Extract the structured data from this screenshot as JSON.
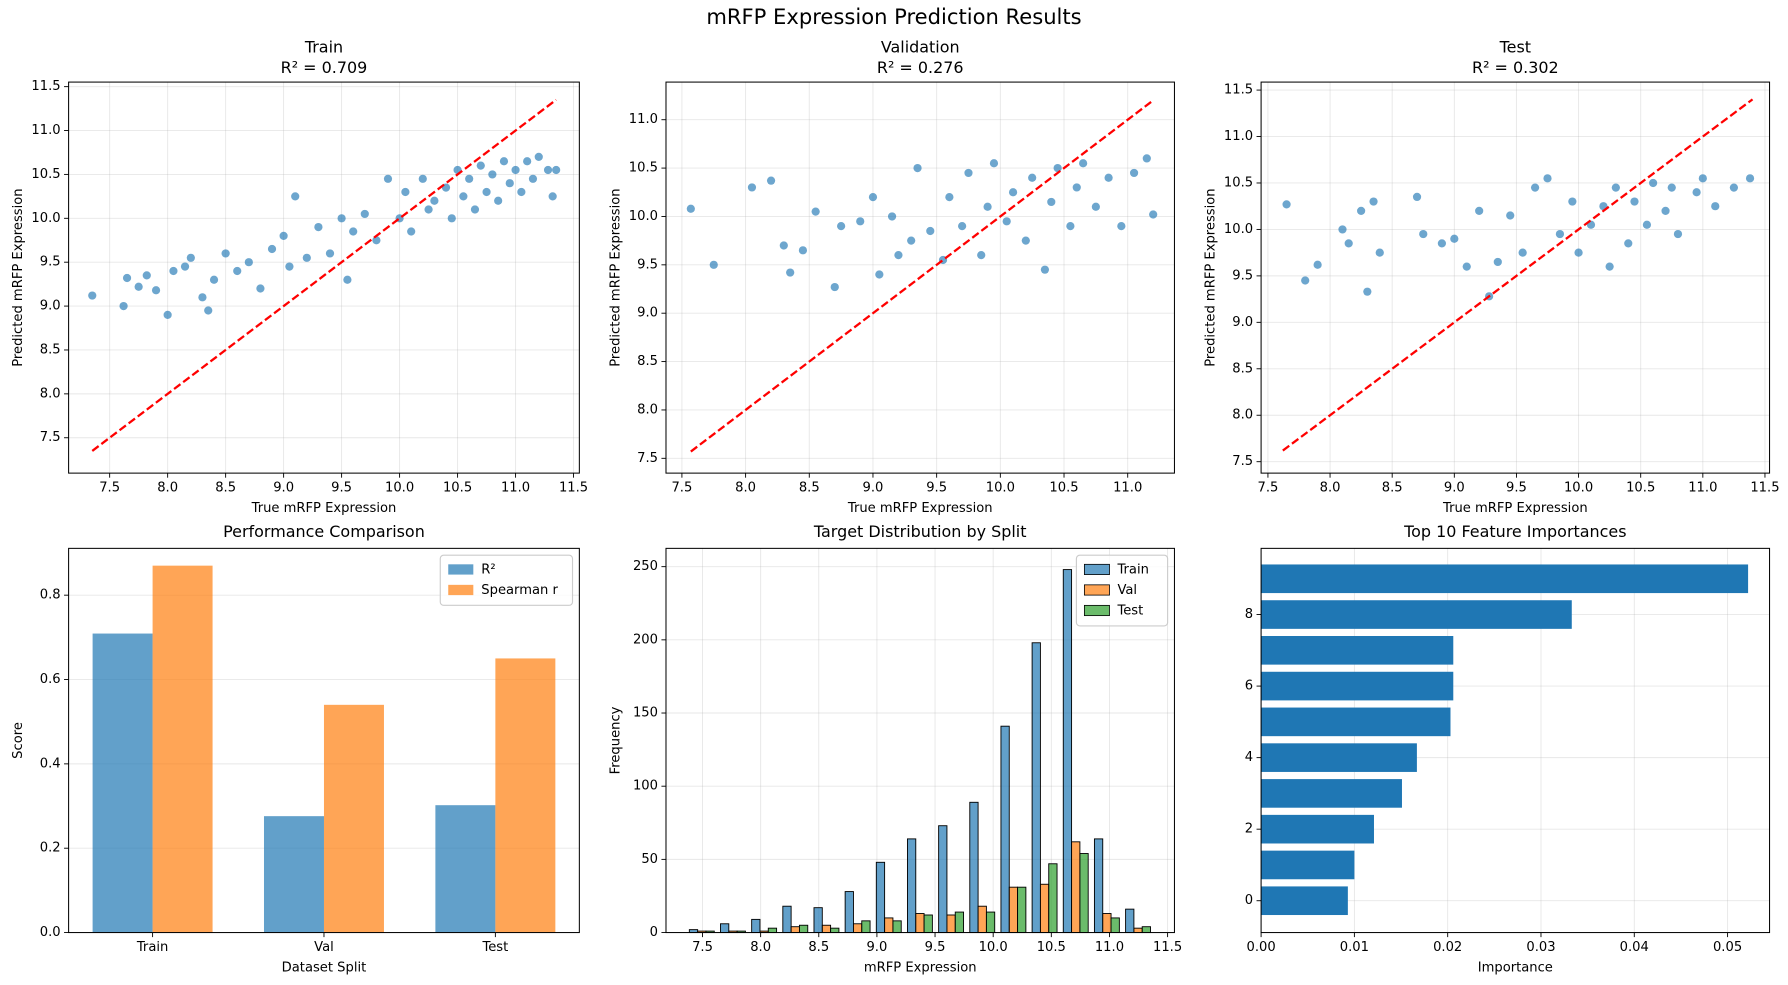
{
  "title": "mRFP Expression Prediction Results",
  "chart_data": [
    {
      "type": "scatter",
      "title": "Train",
      "subtitle": "R² = 0.709",
      "x_label": "True mRFP Expression",
      "y_label": "Predicted mRFP Expression",
      "color": "#1f77b4",
      "grid": true,
      "x": [
        7.35,
        7.62,
        7.65,
        7.75,
        7.82,
        7.9,
        8.0,
        8.05,
        8.15,
        8.2,
        8.3,
        8.35,
        8.4,
        8.5,
        8.6,
        8.7,
        8.8,
        8.9,
        9.0,
        9.05,
        9.1,
        9.2,
        9.3,
        9.4,
        9.5,
        9.55,
        9.6,
        9.7,
        9.8,
        9.9,
        10.0,
        10.05,
        10.1,
        10.2,
        10.25,
        10.3,
        10.4,
        10.45,
        10.5,
        10.55,
        10.6,
        10.65,
        10.7,
        10.75,
        10.8,
        10.85,
        10.9,
        10.95,
        11.0,
        11.05,
        11.1,
        11.15,
        11.2,
        11.28,
        11.32,
        11.35
      ],
      "values": [
        9.12,
        9.0,
        9.32,
        9.22,
        9.35,
        9.18,
        8.9,
        9.4,
        9.45,
        9.55,
        9.1,
        8.95,
        9.3,
        9.6,
        9.4,
        9.5,
        9.2,
        9.65,
        9.8,
        9.45,
        10.25,
        9.55,
        9.9,
        9.6,
        10.0,
        9.3,
        9.85,
        10.05,
        9.75,
        10.45,
        10.0,
        10.3,
        9.85,
        10.45,
        10.1,
        10.2,
        10.35,
        10.0,
        10.55,
        10.25,
        10.45,
        10.1,
        10.6,
        10.3,
        10.5,
        10.2,
        10.65,
        10.4,
        10.55,
        10.3,
        10.65,
        10.45,
        10.7,
        10.55,
        10.25,
        10.55
      ],
      "reference_line": {
        "color": "red",
        "x": [
          7.35,
          11.35
        ],
        "values": [
          7.35,
          11.35
        ]
      },
      "xlim": [
        7.146,
        11.55
      ],
      "ylim": [
        7.097,
        11.552
      ],
      "xticks": [
        {
          "value": 7.5,
          "label": "7.5"
        },
        {
          "value": 8,
          "label": "8.0"
        },
        {
          "value": 8.5,
          "label": "8.5"
        },
        {
          "value": 9,
          "label": "9.0"
        },
        {
          "value": 9.5,
          "label": "9.5"
        },
        {
          "value": 10,
          "label": "10.0"
        },
        {
          "value": 10.5,
          "label": "10.5"
        },
        {
          "value": 11,
          "label": "11.0"
        },
        {
          "value": 11.5,
          "label": "11.5"
        }
      ],
      "yticks": [
        {
          "value": 7.5,
          "label": "7.5"
        },
        {
          "value": 8,
          "label": "8.0"
        },
        {
          "value": 8.5,
          "label": "8.5"
        },
        {
          "value": 9,
          "label": "9.0"
        },
        {
          "value": 9.5,
          "label": "9.5"
        },
        {
          "value": 10,
          "label": "10.0"
        },
        {
          "value": 10.5,
          "label": "10.5"
        },
        {
          "value": 11,
          "label": "11.0"
        },
        {
          "value": 11.5,
          "label": "11.5"
        }
      ]
    },
    {
      "type": "scatter",
      "title": "Validation",
      "subtitle": "R² = 0.276",
      "x_label": "True mRFP Expression",
      "y_label": "Predicted mRFP Expression",
      "color": "#1f77b4",
      "grid": true,
      "x": [
        7.57,
        7.75,
        8.05,
        8.2,
        8.3,
        8.35,
        8.45,
        8.55,
        8.7,
        8.75,
        8.9,
        9.0,
        9.05,
        9.15,
        9.2,
        9.3,
        9.35,
        9.45,
        9.55,
        9.6,
        9.7,
        9.75,
        9.85,
        9.9,
        9.95,
        10.05,
        10.1,
        10.2,
        10.25,
        10.35,
        10.4,
        10.45,
        10.55,
        10.6,
        10.65,
        10.75,
        10.85,
        10.95,
        11.05,
        11.15,
        11.2
      ],
      "values": [
        10.08,
        9.5,
        10.3,
        10.37,
        9.7,
        9.42,
        9.65,
        10.05,
        9.27,
        9.9,
        9.95,
        10.2,
        9.4,
        10.0,
        9.6,
        9.75,
        10.5,
        9.85,
        9.55,
        10.2,
        9.9,
        10.45,
        9.6,
        10.1,
        10.55,
        9.95,
        10.25,
        9.75,
        10.4,
        9.45,
        10.15,
        10.5,
        9.9,
        10.3,
        10.55,
        10.1,
        10.4,
        9.9,
        10.45,
        10.6,
        10.02
      ],
      "reference_line": {
        "color": "red",
        "x": [
          7.57,
          11.2
        ],
        "values": [
          7.57,
          11.2
        ]
      },
      "xlim": [
        7.375,
        11.367
      ],
      "ylim": [
        7.347,
        11.389
      ],
      "xticks": [
        {
          "value": 7.5,
          "label": "7.5"
        },
        {
          "value": 8,
          "label": "8.0"
        },
        {
          "value": 8.5,
          "label": "8.5"
        },
        {
          "value": 9,
          "label": "9.0"
        },
        {
          "value": 9.5,
          "label": "9.5"
        },
        {
          "value": 10,
          "label": "10.0"
        },
        {
          "value": 10.5,
          "label": "10.5"
        },
        {
          "value": 11,
          "label": "11.0"
        }
      ],
      "yticks": [
        {
          "value": 7.5,
          "label": "7.5"
        },
        {
          "value": 8,
          "label": "8.0"
        },
        {
          "value": 8.5,
          "label": "8.5"
        },
        {
          "value": 9,
          "label": "9.0"
        },
        {
          "value": 9.5,
          "label": "9.5"
        },
        {
          "value": 10,
          "label": "10.0"
        },
        {
          "value": 10.5,
          "label": "10.5"
        },
        {
          "value": 11,
          "label": "11.0"
        }
      ]
    },
    {
      "type": "scatter",
      "title": "Test",
      "subtitle": "R² = 0.302",
      "x_label": "True mRFP Expression",
      "y_label": "Predicted mRFP Expression",
      "color": "#1f77b4",
      "grid": true,
      "x": [
        7.65,
        7.8,
        7.9,
        8.1,
        8.15,
        8.25,
        8.3,
        8.35,
        8.4,
        8.7,
        8.75,
        8.9,
        9.0,
        9.1,
        9.2,
        9.28,
        9.35,
        9.45,
        9.55,
        9.65,
        9.75,
        9.85,
        9.95,
        10.0,
        10.1,
        10.2,
        10.25,
        10.3,
        10.4,
        10.45,
        10.55,
        10.6,
        10.7,
        10.75,
        10.8,
        10.95,
        11.0,
        11.1,
        11.25,
        11.38
      ],
      "values": [
        10.27,
        9.45,
        9.62,
        10.0,
        9.85,
        10.2,
        9.33,
        10.3,
        9.75,
        10.35,
        9.95,
        9.85,
        9.9,
        9.6,
        10.2,
        9.28,
        9.65,
        10.15,
        9.75,
        10.45,
        10.55,
        9.95,
        10.3,
        9.75,
        10.05,
        10.25,
        9.6,
        10.45,
        9.85,
        10.3,
        10.05,
        10.5,
        10.2,
        10.45,
        9.95,
        10.4,
        10.55,
        10.25,
        10.45,
        10.55
      ],
      "reference_line": {
        "color": "red",
        "x": [
          7.62,
          11.4
        ],
        "values": [
          7.62,
          11.4
        ]
      },
      "xlim": [
        7.445,
        11.537
      ],
      "ylim": [
        7.377,
        11.586
      ],
      "xticks": [
        {
          "value": 7.5,
          "label": "7.5"
        },
        {
          "value": 8,
          "label": "8.0"
        },
        {
          "value": 8.5,
          "label": "8.5"
        },
        {
          "value": 9,
          "label": "9.0"
        },
        {
          "value": 9.5,
          "label": "9.5"
        },
        {
          "value": 10,
          "label": "10.0"
        },
        {
          "value": 10.5,
          "label": "10.5"
        },
        {
          "value": 11,
          "label": "11.0"
        },
        {
          "value": 11.5,
          "label": "11.5"
        }
      ],
      "yticks": [
        {
          "value": 7.5,
          "label": "7.5"
        },
        {
          "value": 8,
          "label": "8.0"
        },
        {
          "value": 8.5,
          "label": "8.5"
        },
        {
          "value": 9,
          "label": "9.0"
        },
        {
          "value": 9.5,
          "label": "9.5"
        },
        {
          "value": 10,
          "label": "10.0"
        },
        {
          "value": 10.5,
          "label": "10.5"
        },
        {
          "value": 11,
          "label": "11.0"
        },
        {
          "value": 11.5,
          "label": "11.5"
        }
      ]
    },
    {
      "type": "bar",
      "title": "Performance Comparison",
      "x_label": "Dataset Split",
      "y_label": "Score",
      "grid": true,
      "legend": "upper right",
      "categories": [
        "Train",
        "Val",
        "Test"
      ],
      "series": [
        {
          "name": "R²",
          "color": "#1f77b4",
          "values": [
            0.709,
            0.276,
            0.302
          ]
        },
        {
          "name": "Spearman r",
          "color": "#ff7f0e",
          "values": [
            0.87,
            0.54,
            0.65
          ]
        }
      ],
      "ylim": [
        0,
        0.911
      ],
      "yticks": [
        {
          "value": 0,
          "label": "0.0"
        },
        {
          "value": 0.2,
          "label": "0.2"
        },
        {
          "value": 0.4,
          "label": "0.4"
        },
        {
          "value": 0.6,
          "label": "0.6"
        },
        {
          "value": 0.8,
          "label": "0.8"
        }
      ]
    },
    {
      "type": "histogram",
      "title": "Target Distribution by Split",
      "x_label": "mRFP Expression",
      "y_label": "Frequency",
      "grid": true,
      "legend": "upper right",
      "bins": [
        7.36,
        7.628,
        7.896,
        8.164,
        8.432,
        8.7,
        8.968,
        9.236,
        9.504,
        9.772,
        10.04,
        10.308,
        10.576,
        10.844,
        11.112,
        11.38
      ],
      "series": [
        {
          "name": "Train",
          "color": "#1f77b4",
          "values": [
            2,
            6,
            9,
            18,
            17,
            28,
            48,
            64,
            73,
            89,
            141,
            198,
            248,
            64,
            16
          ]
        },
        {
          "name": "Val",
          "color": "#ff7f0e",
          "values": [
            1,
            1,
            1,
            4,
            5,
            6,
            10,
            13,
            12,
            18,
            31,
            33,
            62,
            13,
            3
          ]
        },
        {
          "name": "Test",
          "color": "#2ca02c",
          "values": [
            1,
            1,
            3,
            5,
            3,
            8,
            8,
            12,
            14,
            14,
            31,
            47,
            54,
            10,
            4
          ]
        }
      ],
      "xlim": [
        7.186,
        11.559
      ],
      "ylim": [
        0,
        262.5
      ],
      "xticks": [
        {
          "value": 7.5,
          "label": "7.5"
        },
        {
          "value": 8,
          "label": "8.0"
        },
        {
          "value": 8.5,
          "label": "8.5"
        },
        {
          "value": 9,
          "label": "9.0"
        },
        {
          "value": 9.5,
          "label": "9.5"
        },
        {
          "value": 10,
          "label": "10.0"
        },
        {
          "value": 10.5,
          "label": "10.5"
        },
        {
          "value": 11,
          "label": "11.0"
        },
        {
          "value": 11.5,
          "label": "11.5"
        }
      ],
      "yticks": [
        0,
        50,
        100,
        150,
        200,
        250
      ]
    },
    {
      "type": "barh",
      "title": "Top 10 Feature Importances",
      "x_label": "Importance",
      "color": "#1f77b4",
      "grid": true,
      "y": [
        0,
        1,
        2,
        3,
        4,
        5,
        6,
        7,
        8,
        9
      ],
      "values": [
        0.0093,
        0.01,
        0.0121,
        0.0151,
        0.0167,
        0.0203,
        0.0206,
        0.0206,
        0.0333,
        0.0522
      ],
      "xlim": [
        0,
        0.0545
      ],
      "ylim": [
        -0.89,
        9.85
      ],
      "xticks": [
        {
          "value": 0,
          "label": "0.00"
        },
        {
          "value": 0.01,
          "label": "0.01"
        },
        {
          "value": 0.02,
          "label": "0.02"
        },
        {
          "value": 0.03,
          "label": "0.03"
        },
        {
          "value": 0.04,
          "label": "0.04"
        },
        {
          "value": 0.05,
          "label": "0.05"
        }
      ],
      "yticks": [
        0,
        2,
        4,
        6,
        8
      ]
    }
  ]
}
